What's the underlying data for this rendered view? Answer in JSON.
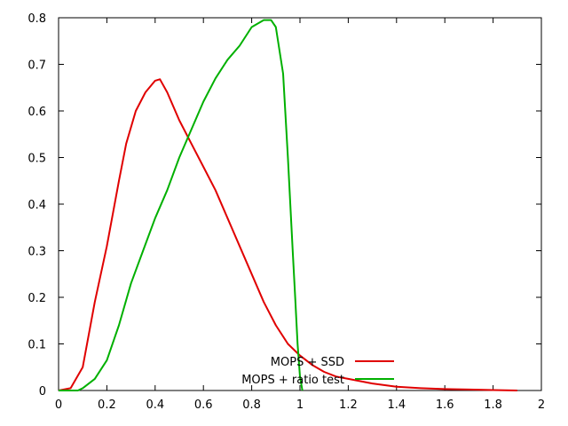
{
  "chart_data": {
    "type": "line",
    "title": "",
    "xlabel": "",
    "ylabel": "",
    "xlim": [
      0,
      2
    ],
    "ylim": [
      0,
      0.8
    ],
    "grid": false,
    "legend_position": "bottom-center",
    "x_ticks": [
      "0",
      "0.2",
      "0.4",
      "0.6",
      "0.8",
      "1",
      "1.2",
      "1.4",
      "1.6",
      "1.8",
      "2"
    ],
    "y_ticks": [
      "0",
      "0.1",
      "0.2",
      "0.3",
      "0.4",
      "0.5",
      "0.6",
      "0.7",
      "0.8"
    ],
    "series": [
      {
        "name": "MOPS + SSD",
        "color": "#e00000",
        "x": [
          0,
          0.05,
          0.1,
          0.15,
          0.2,
          0.25,
          0.28,
          0.32,
          0.36,
          0.4,
          0.42,
          0.45,
          0.5,
          0.55,
          0.6,
          0.65,
          0.7,
          0.75,
          0.8,
          0.85,
          0.9,
          0.95,
          1.0,
          1.05,
          1.1,
          1.15,
          1.2,
          1.3,
          1.4,
          1.5,
          1.6,
          1.7,
          1.8,
          1.9
        ],
        "y": [
          0,
          0.005,
          0.05,
          0.19,
          0.31,
          0.45,
          0.53,
          0.6,
          0.64,
          0.665,
          0.668,
          0.64,
          0.58,
          0.53,
          0.48,
          0.43,
          0.37,
          0.31,
          0.25,
          0.19,
          0.14,
          0.1,
          0.075,
          0.055,
          0.04,
          0.03,
          0.025,
          0.015,
          0.008,
          0.005,
          0.003,
          0.002,
          0.001,
          0
        ]
      },
      {
        "name": "MOPS + ratio test",
        "color": "#00b000",
        "x": [
          0,
          0.08,
          0.1,
          0.15,
          0.2,
          0.25,
          0.3,
          0.35,
          0.4,
          0.45,
          0.5,
          0.55,
          0.6,
          0.65,
          0.7,
          0.75,
          0.8,
          0.85,
          0.88,
          0.9,
          0.93,
          0.95,
          0.97,
          0.98,
          0.99,
          1.0,
          1.01
        ],
        "y": [
          0,
          0,
          0.005,
          0.025,
          0.065,
          0.14,
          0.23,
          0.3,
          0.37,
          0.43,
          0.5,
          0.56,
          0.62,
          0.67,
          0.71,
          0.74,
          0.78,
          0.795,
          0.795,
          0.78,
          0.68,
          0.5,
          0.3,
          0.2,
          0.1,
          0.03,
          0
        ]
      }
    ]
  }
}
